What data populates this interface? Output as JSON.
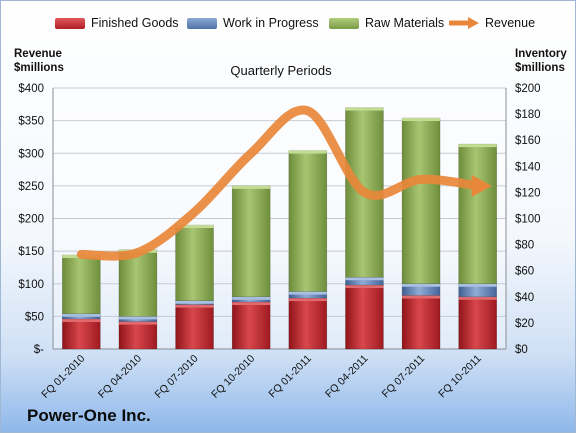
{
  "company": "Power-One Inc.",
  "left_axis_title": [
    "Revenue",
    "$millions"
  ],
  "right_axis_title": [
    "Inventory",
    "$millions"
  ],
  "period_label": "Quarterly Periods",
  "legend": [
    {
      "label": "Finished Goods",
      "color": "#c0262b"
    },
    {
      "label": "Work in Progress",
      "color": "#5f82b6"
    },
    {
      "label": "Raw Materials",
      "color": "#8cad55"
    },
    {
      "label": "Revenue",
      "color": "#e8873a"
    }
  ],
  "chart_data": {
    "type": "bar",
    "stacked": true,
    "categories": [
      "FQ 01-2010",
      "FQ 04-2010",
      "FQ 07-2010",
      "FQ 10-2010",
      "FQ 01-2011",
      "FQ 04-2011",
      "FQ 07-2011",
      "FQ 10-2011"
    ],
    "series": [
      {
        "name": "Finished Goods",
        "axis": "right",
        "color": "#c0262b",
        "values": [
          23,
          21,
          34,
          36,
          39,
          49,
          41,
          40
        ]
      },
      {
        "name": "Work in Progress",
        "axis": "right",
        "color": "#5f82b6",
        "values": [
          4,
          4,
          3,
          4,
          5,
          6,
          9,
          10
        ]
      },
      {
        "name": "Raw Materials",
        "axis": "right",
        "color": "#8cad55",
        "values": [
          45,
          51,
          58,
          85,
          108,
          130,
          127,
          107
        ]
      },
      {
        "name": "Revenue",
        "type": "line",
        "axis": "left",
        "color": "#e8873a",
        "values": [
          145,
          148,
          210,
          300,
          365,
          240,
          260,
          250
        ]
      }
    ],
    "left_axis": {
      "title": "Revenue $millions",
      "ylim": [
        0,
        400
      ],
      "ticks": [
        "$-",
        "$50",
        "$100",
        "$150",
        "$200",
        "$250",
        "$300",
        "$350",
        "$400"
      ]
    },
    "right_axis": {
      "title": "Inventory $millions",
      "ylim": [
        0,
        200
      ],
      "ticks": [
        "$0",
        "$20",
        "$40",
        "$60",
        "$80",
        "$100",
        "$120",
        "$140",
        "$160",
        "$180",
        "$200"
      ]
    },
    "grid": true,
    "legend_position": "top"
  }
}
